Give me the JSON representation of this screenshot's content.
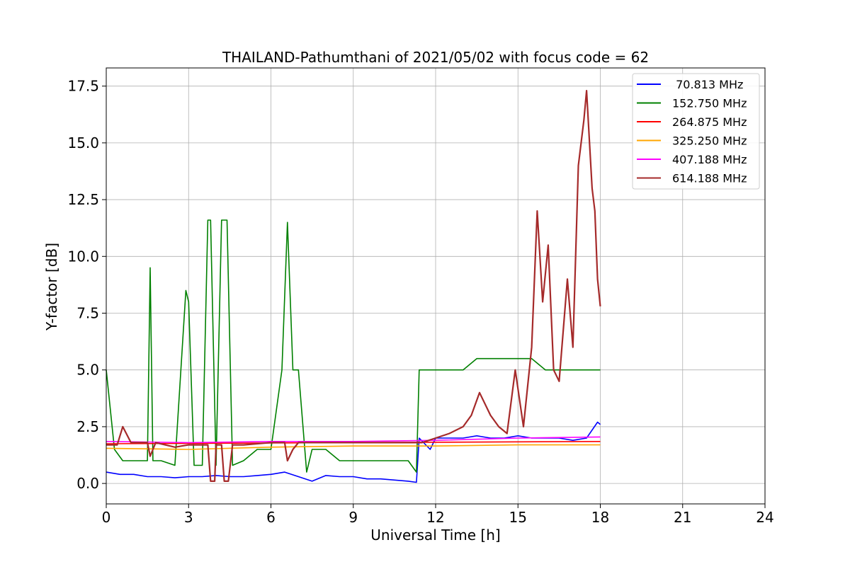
{
  "chart_data": {
    "type": "line",
    "title": "THAILAND-Pathumthani of 2021/05/02 with focus code = 62",
    "xlabel": "Universal Time [h]",
    "ylabel": "Y-factor [dB]",
    "xlim": [
      0,
      24
    ],
    "ylim": [
      -0.9,
      18.3
    ],
    "xticks": [
      0,
      3,
      6,
      9,
      12,
      15,
      18,
      21,
      24
    ],
    "xtick_labels": [
      "0",
      "3",
      "6",
      "9",
      "12",
      "15",
      "18",
      "21",
      "24"
    ],
    "yticks": [
      0.0,
      2.5,
      5.0,
      7.5,
      10.0,
      12.5,
      15.0,
      17.5
    ],
    "ytick_labels": [
      "0.0",
      "2.5",
      "5.0",
      "7.5",
      "10.0",
      "12.5",
      "15.0",
      "17.5"
    ],
    "grid": true,
    "legend_position": "top-right",
    "series": [
      {
        "name": " 70.813 MHz",
        "color": "#0000ff",
        "x": [
          0,
          0.5,
          1,
          1.5,
          2,
          2.5,
          3,
          3.5,
          4,
          4.5,
          5,
          5.5,
          6,
          6.5,
          7,
          7.5,
          8,
          8.5,
          9,
          9.5,
          10,
          10.5,
          11,
          11.3,
          11.4,
          11.8,
          12,
          12.5,
          13,
          13.5,
          14,
          14.5,
          15,
          15.5,
          16,
          16.5,
          17,
          17.5,
          17.9,
          18
        ],
        "y": [
          0.5,
          0.4,
          0.4,
          0.3,
          0.3,
          0.25,
          0.3,
          0.3,
          0.35,
          0.3,
          0.3,
          0.35,
          0.4,
          0.5,
          0.3,
          0.1,
          0.35,
          0.3,
          0.3,
          0.2,
          0.2,
          0.15,
          0.1,
          0.05,
          2.0,
          1.5,
          2.0,
          2.0,
          2.0,
          2.1,
          2.0,
          2.0,
          2.1,
          2.0,
          2.0,
          2.0,
          1.9,
          2.0,
          2.7,
          2.6
        ]
      },
      {
        "name": "152.750 MHz",
        "color": "#008000",
        "x": [
          0,
          0.3,
          0.6,
          1,
          1.5,
          1.6,
          1.7,
          2,
          2.5,
          2.9,
          3.0,
          3.2,
          3.5,
          3.7,
          3.8,
          4.0,
          4.2,
          4.4,
          4.6,
          5,
          5.5,
          6,
          6.4,
          6.6,
          6.8,
          7,
          7.3,
          7.5,
          8,
          8.5,
          9,
          9.5,
          10,
          10.5,
          11,
          11.3,
          11.4,
          11.8,
          12,
          12.5,
          13,
          13.5,
          14,
          14.5,
          15,
          15.5,
          16,
          16.5,
          17,
          17.5,
          17.9,
          18
        ],
        "y": [
          5.0,
          1.5,
          1.0,
          1.0,
          1.0,
          9.5,
          1.0,
          1.0,
          0.8,
          8.5,
          8.0,
          0.8,
          0.8,
          11.6,
          11.6,
          0.8,
          11.6,
          11.6,
          0.8,
          1.0,
          1.5,
          1.5,
          5.0,
          11.5,
          5.0,
          5.0,
          0.5,
          1.5,
          1.5,
          1.0,
          1.0,
          1.0,
          1.0,
          1.0,
          1.0,
          0.5,
          5.0,
          5.0,
          5.0,
          5.0,
          5.0,
          5.5,
          5.5,
          5.5,
          5.5,
          5.5,
          5.0,
          5.0,
          5.0,
          5.0,
          5.0,
          5.0
        ]
      },
      {
        "name": "264.875 MHz",
        "color": "#ff0000",
        "x": [
          0,
          18
        ],
        "y": [
          1.75,
          1.85
        ]
      },
      {
        "name": "325.250 MHz",
        "color": "#ffa500",
        "x": [
          0,
          3,
          6,
          9,
          12,
          15,
          18
        ],
        "y": [
          1.55,
          1.5,
          1.6,
          1.65,
          1.65,
          1.7,
          1.7
        ]
      },
      {
        "name": "407.188 MHz",
        "color": "#ff00ff",
        "x": [
          0,
          3,
          6,
          9,
          12,
          15,
          18
        ],
        "y": [
          1.85,
          1.8,
          1.85,
          1.85,
          1.9,
          2.0,
          2.05
        ]
      },
      {
        "name": "614.188 MHz",
        "color": "#a52a2a",
        "x": [
          0,
          0.4,
          0.6,
          0.9,
          1.5,
          1.6,
          1.8,
          2.5,
          3.0,
          3.5,
          3.7,
          3.8,
          3.95,
          4.0,
          4.2,
          4.3,
          4.45,
          4.6,
          5,
          6,
          6.5,
          6.6,
          6.8,
          7,
          8,
          9,
          10,
          11,
          11.5,
          12,
          12.5,
          13,
          13.3,
          13.6,
          14,
          14.3,
          14.6,
          14.9,
          15.2,
          15.5,
          15.7,
          15.9,
          16.1,
          16.3,
          16.5,
          16.8,
          17.0,
          17.2,
          17.4,
          17.5,
          17.7,
          17.8,
          17.9,
          18
        ],
        "y": [
          1.7,
          1.7,
          2.5,
          1.8,
          1.8,
          1.2,
          1.8,
          1.6,
          1.7,
          1.7,
          1.7,
          0.1,
          0.1,
          1.7,
          1.7,
          0.1,
          0.1,
          1.7,
          1.7,
          1.8,
          1.8,
          1.0,
          1.5,
          1.8,
          1.8,
          1.8,
          1.8,
          1.8,
          1.8,
          2.0,
          2.2,
          2.5,
          3.0,
          4.0,
          3.0,
          2.5,
          2.2,
          5.0,
          2.5,
          6.0,
          12.0,
          8.0,
          10.5,
          5.0,
          4.5,
          9.0,
          6.0,
          14.0,
          16.0,
          17.3,
          13.0,
          12.0,
          9.0,
          7.8
        ]
      }
    ]
  }
}
